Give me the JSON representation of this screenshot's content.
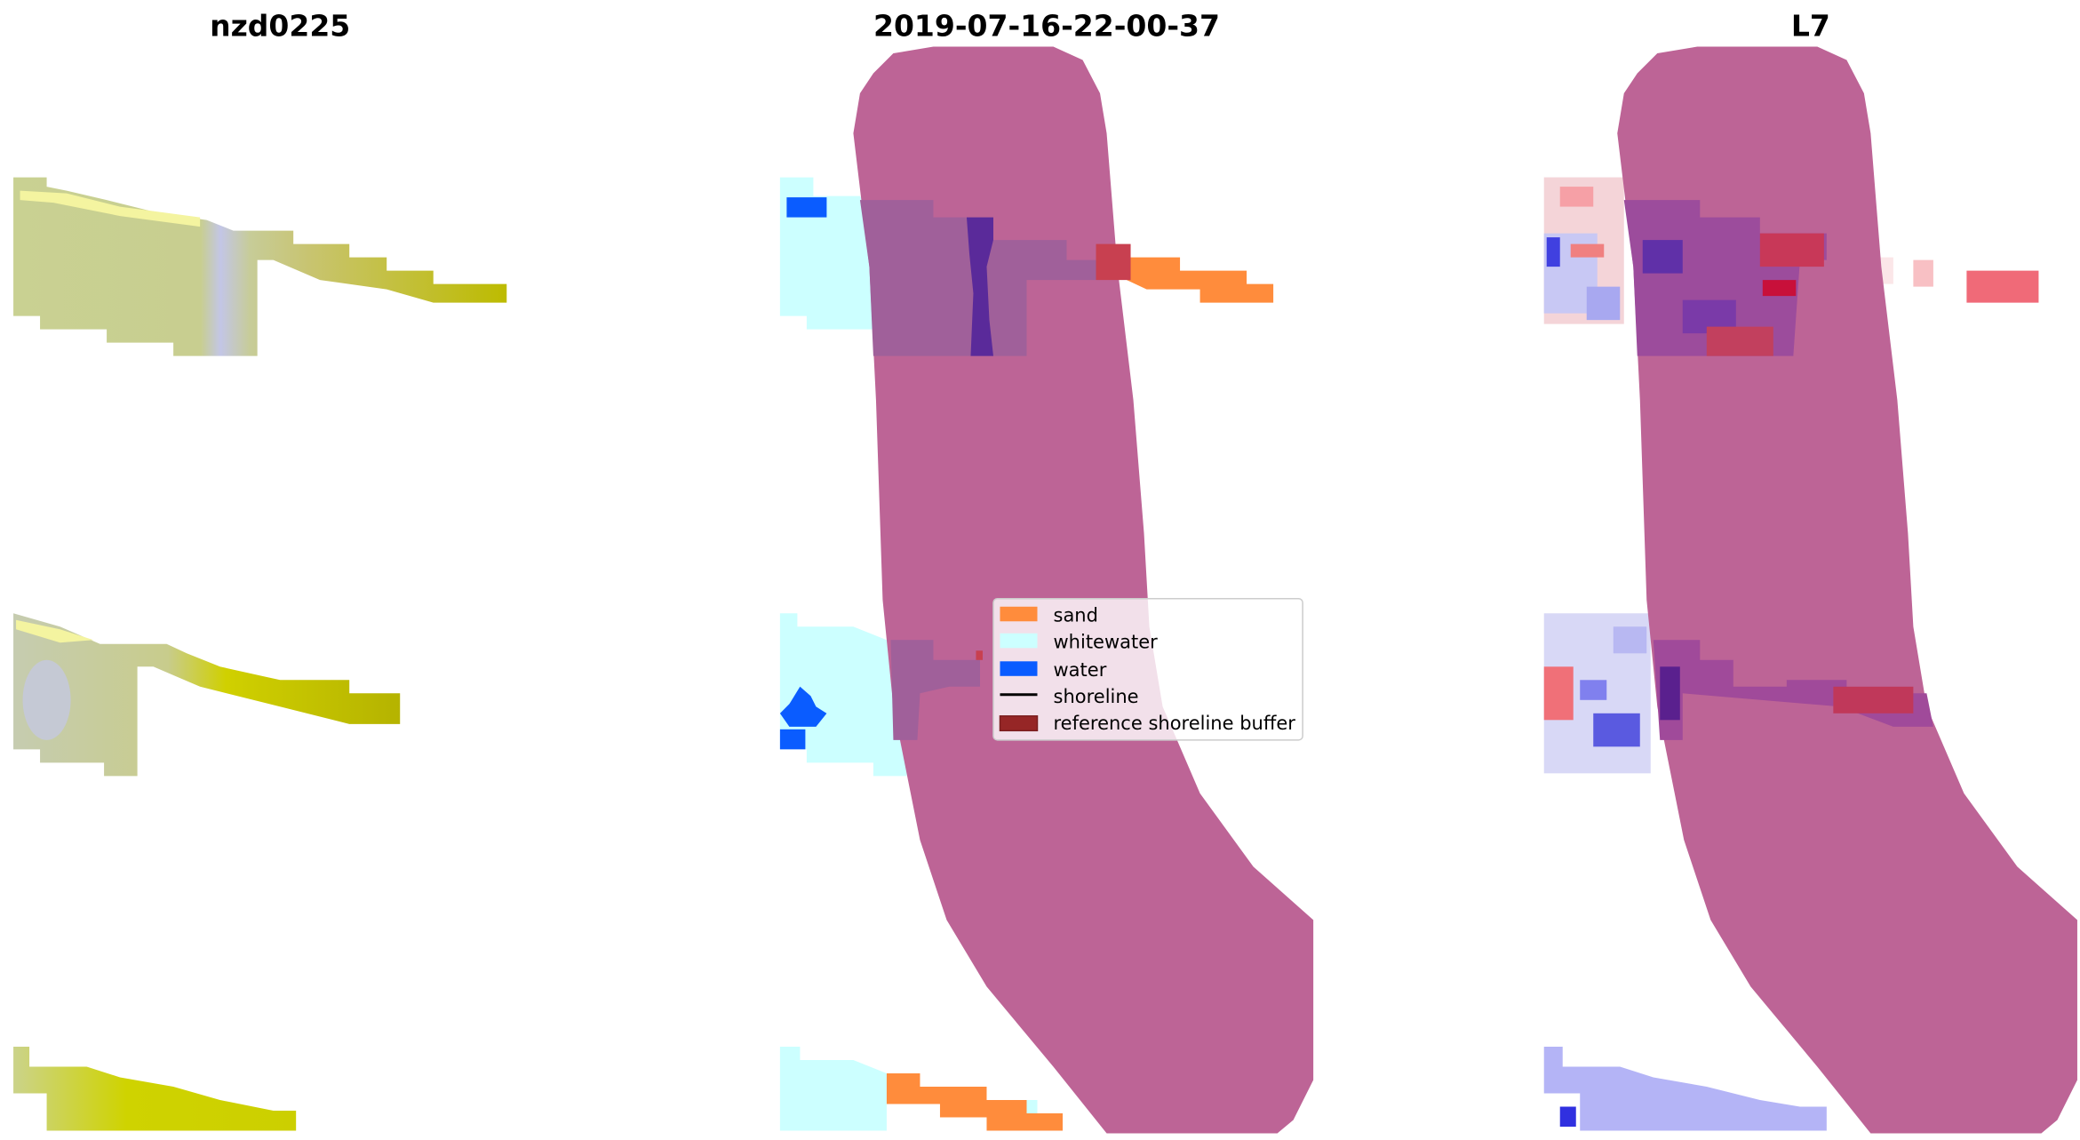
{
  "chart_data": {
    "type": "image",
    "panels": [
      {
        "title": "nzd0225",
        "content": "rgb-image"
      },
      {
        "title": "2019-07-16-22-00-37",
        "content": "classified-image"
      },
      {
        "title": "L7",
        "content": "index-image"
      }
    ],
    "axes_visible": false,
    "legend": {
      "placement": "center (middle panel)",
      "entries": [
        {
          "label": "sand",
          "kind": "patch",
          "color": "#ff8c3c"
        },
        {
          "label": "whitewater",
          "kind": "patch",
          "color": "#ccffff"
        },
        {
          "label": "water",
          "kind": "patch",
          "color": "#0a5cff"
        },
        {
          "label": "shoreline",
          "kind": "line",
          "color": "#000000"
        },
        {
          "label": "reference shoreline buffer",
          "kind": "patch",
          "color": "#962626"
        }
      ]
    },
    "colors": {
      "buffer_overlay": "#bd6496"
    }
  }
}
